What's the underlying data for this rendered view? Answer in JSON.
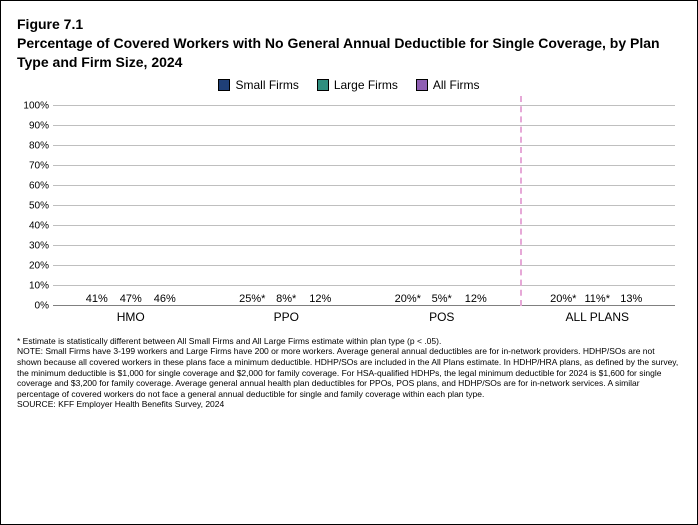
{
  "figure_label": "Figure 7.1",
  "title": "Percentage of Covered Workers with No General Annual Deductible for Single Coverage, by Plan Type and Firm Size, 2024",
  "legend": {
    "items": [
      {
        "label": "Small Firms",
        "color": "#1f3f77"
      },
      {
        "label": "Large Firms",
        "color": "#2f8f7f"
      },
      {
        "label": "All Firms",
        "color": "#8f5fb3"
      }
    ]
  },
  "chart": {
    "type": "bar",
    "ylim": [
      0,
      105
    ],
    "ytick_step": 10,
    "ytick_labels": [
      "0%",
      "10%",
      "20%",
      "30%",
      "40%",
      "50%",
      "60%",
      "70%",
      "80%",
      "90%",
      "100%"
    ],
    "grid_color": "#bfbfbf",
    "axis_color": "#808080",
    "background_color": "#ffffff",
    "label_fontsize": 11,
    "categories": [
      "HMO",
      "PPO",
      "POS",
      "ALL PLANS"
    ],
    "divider_before_index": 3,
    "divider_color": "#e6a8d7",
    "series": [
      {
        "name": "Small Firms",
        "color": "#1f3f77",
        "values": [
          41,
          25,
          20,
          20
        ],
        "labels": [
          "41%",
          "25%*",
          "20%*",
          "20%*"
        ]
      },
      {
        "name": "Large Firms",
        "color": "#2f8f7f",
        "values": [
          47,
          8,
          5,
          11
        ],
        "labels": [
          "47%",
          "8%*",
          "5%*",
          "11%*"
        ]
      },
      {
        "name": "All Firms",
        "color": "#8f5fb3",
        "values": [
          46,
          12,
          12,
          13
        ],
        "labels": [
          "46%",
          "12%",
          "12%",
          "13%"
        ]
      }
    ]
  },
  "footnotes": {
    "star": "* Estimate is statistically different between All Small Firms and All Large Firms estimate within plan type (p < .05).",
    "note": "NOTE: Small Firms have 3-199 workers and Large Firms have 200 or more workers. Average general annual deductibles are for in-network providers. HDHP/SOs are not shown because all covered workers in these plans face a minimum deductible. HDHP/SOs are included in the All Plans estimate. In HDHP/HRA plans, as defined by the survey, the minimum deductible is $1,000 for single coverage and $2,000 for family coverage. For HSA-qualified HDHPs, the legal minimum deductible for 2024 is $1,600 for single coverage and $3,200 for family coverage. Average general annual health plan deductibles for PPOs, POS plans, and HDHP/SOs are for in-network services. A similar percentage of covered workers do not face a general annual deductible for single and family coverage within each plan type.",
    "source": "SOURCE: KFF Employer Health Benefits Survey, 2024"
  }
}
